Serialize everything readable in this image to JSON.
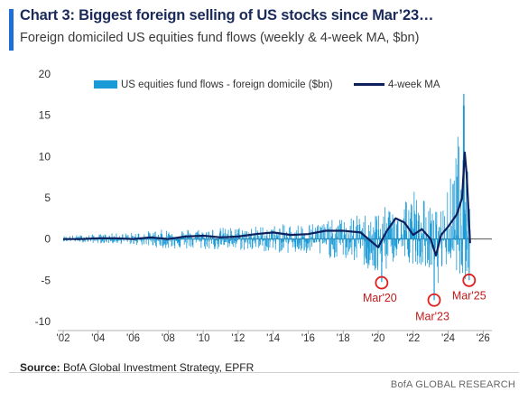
{
  "header": {
    "title": "Chart 3: Biggest foreign selling of US stocks since Mar’23…",
    "subtitle": "Foreign domiciled US equities fund flows (weekly & 4-week MA, $bn)"
  },
  "footer": {
    "source_label": "Source:",
    "source_text": "BofA Global Investment Strategy, EPFR",
    "brand": "BofA GLOBAL RESEARCH"
  },
  "chart_data": {
    "type": "bar",
    "ylim": [
      -10,
      20
    ],
    "yticks": [
      20,
      15,
      10,
      5,
      0,
      -5,
      -10
    ],
    "xlim": [
      2002,
      2026.5
    ],
    "xticks": [
      "'02",
      "'04",
      "'06",
      "'08",
      "'10",
      "'12",
      "'14",
      "'16",
      "'18",
      "'20",
      "'22",
      "'24",
      "'26"
    ],
    "xtick_years": [
      2002,
      2004,
      2006,
      2008,
      2010,
      2012,
      2014,
      2016,
      2018,
      2020,
      2022,
      2024,
      2026
    ],
    "legend_placement": "top",
    "grid": false,
    "series": [
      {
        "name": "US equities fund flows - foreign domicile ($bn)",
        "color": "#1a9ad6",
        "kind": "bar",
        "approx_envelope": {
          "years": [
            2002,
            2004,
            2006,
            2008,
            2010,
            2012,
            2014,
            2016,
            2018,
            2019,
            2020,
            2021,
            2022,
            2023,
            2023.3,
            2024,
            2024.9,
            2025.2
          ],
          "max": [
            0.4,
            0.6,
            0.8,
            1.2,
            1.3,
            1.5,
            1.7,
            2.0,
            2.5,
            3.0,
            3.5,
            4.5,
            6.5,
            4.0,
            3.5,
            6.0,
            17.6,
            5.0
          ],
          "min": [
            -0.3,
            -0.5,
            -0.7,
            -1.2,
            -1.3,
            -1.4,
            -1.6,
            -2.0,
            -2.5,
            -3.0,
            -5.2,
            -2.5,
            -3.0,
            -3.5,
            -7.4,
            -2.5,
            -5.0,
            -4.5
          ]
        }
      },
      {
        "name": "4-week MA",
        "color": "#0d1f5c",
        "kind": "line",
        "approx_points": [
          [
            2002,
            0.0
          ],
          [
            2003,
            0.0
          ],
          [
            2004,
            0.1
          ],
          [
            2005,
            0.1
          ],
          [
            2006,
            0.0
          ],
          [
            2007,
            0.2
          ],
          [
            2008,
            0.0
          ],
          [
            2009,
            0.3
          ],
          [
            2010,
            0.4
          ],
          [
            2011,
            0.2
          ],
          [
            2012,
            0.3
          ],
          [
            2013,
            0.6
          ],
          [
            2014,
            0.8
          ],
          [
            2015,
            0.5
          ],
          [
            2016,
            0.6
          ],
          [
            2017,
            1.0
          ],
          [
            2018,
            1.0
          ],
          [
            2019,
            0.8
          ],
          [
            2020,
            -1.0
          ],
          [
            2020.5,
            1.0
          ],
          [
            2021,
            2.5
          ],
          [
            2021.5,
            2.0
          ],
          [
            2022,
            0.5
          ],
          [
            2022.5,
            1.2
          ],
          [
            2023,
            0.0
          ],
          [
            2023.3,
            -2.0
          ],
          [
            2023.6,
            0.5
          ],
          [
            2024,
            1.5
          ],
          [
            2024.5,
            3.0
          ],
          [
            2024.8,
            5.0
          ],
          [
            2024.95,
            10.5
          ],
          [
            2025.05,
            8.0
          ],
          [
            2025.15,
            4.0
          ],
          [
            2025.25,
            -0.5
          ]
        ]
      }
    ],
    "annotations": [
      {
        "label": "Mar'20",
        "x": 2020.2,
        "y": -5.3
      },
      {
        "label": "Mar'23",
        "x": 2023.2,
        "y": -7.4
      },
      {
        "label": "Mar'25",
        "x": 2025.2,
        "y": -5.0
      }
    ]
  }
}
